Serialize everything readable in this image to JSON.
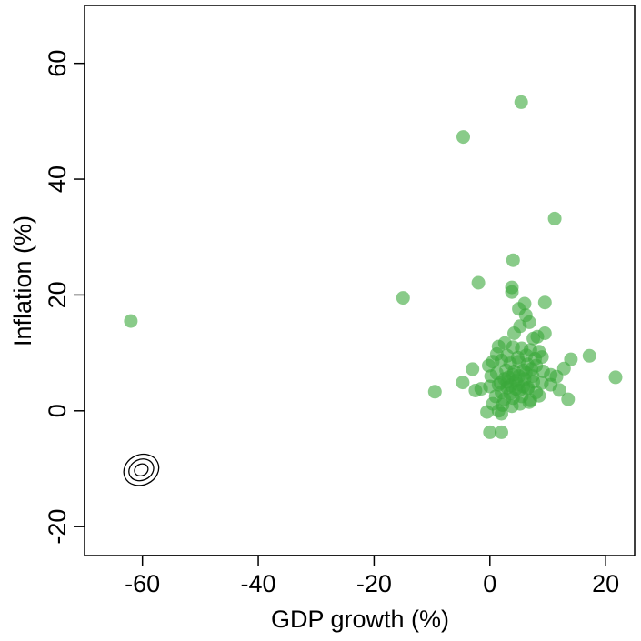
{
  "chart_data": {
    "type": "scatter",
    "title": "",
    "xlabel": "GDP growth (%)",
    "ylabel": "Inflation (%)",
    "xlim": [
      -70,
      25
    ],
    "ylim": [
      -25,
      70
    ],
    "x_ticks": [
      -60,
      -40,
      -20,
      0,
      20
    ],
    "y_ticks": [
      -20,
      0,
      20,
      40,
      60
    ],
    "x_tick_labels": [
      "-60",
      "-40",
      "-20",
      "0",
      "20"
    ],
    "y_tick_labels": [
      "-20",
      "0",
      "20",
      "40",
      "60"
    ],
    "grid": false,
    "legend": "none",
    "point_color": "#3aa83a",
    "point_opacity": 0.6,
    "contour": {
      "center": [
        -60.2,
        -10.2
      ],
      "radii_x": [
        1.2,
        2.2,
        3.1
      ],
      "radii_y": [
        1.0,
        1.8,
        2.6
      ]
    },
    "points": [
      [
        5.4,
        53.3
      ],
      [
        -4.6,
        47.3
      ],
      [
        11.2,
        33.2
      ],
      [
        4.0,
        26.0
      ],
      [
        -2.0,
        22.1
      ],
      [
        3.8,
        21.3
      ],
      [
        3.8,
        20.5
      ],
      [
        -15.0,
        19.5
      ],
      [
        -62.0,
        15.5
      ],
      [
        6.0,
        18.5
      ],
      [
        9.5,
        18.7
      ],
      [
        5.0,
        17.6
      ],
      [
        6.2,
        16.5
      ],
      [
        6.8,
        15.3
      ],
      [
        5.2,
        14.6
      ],
      [
        4.2,
        13.4
      ],
      [
        8.2,
        12.8
      ],
      [
        9.5,
        13.4
      ],
      [
        7.5,
        12.5
      ],
      [
        1.5,
        11.1
      ],
      [
        2.6,
        11.7
      ],
      [
        4.0,
        11.0
      ],
      [
        5.5,
        10.8
      ],
      [
        7.0,
        10.5
      ],
      [
        8.5,
        10.2
      ],
      [
        1.2,
        9.8
      ],
      [
        3.0,
        9.5
      ],
      [
        4.8,
        9.2
      ],
      [
        6.3,
        9.6
      ],
      [
        7.8,
        9.0
      ],
      [
        9.0,
        9.3
      ],
      [
        0.5,
        8.5
      ],
      [
        2.0,
        8.7
      ],
      [
        3.5,
        8.2
      ],
      [
        5.0,
        8.5
      ],
      [
        6.5,
        8.0
      ],
      [
        8.0,
        7.8
      ],
      [
        -0.2,
        7.8
      ],
      [
        14.0,
        8.9
      ],
      [
        17.2,
        9.5
      ],
      [
        21.7,
        5.8
      ],
      [
        12.8,
        7.3
      ],
      [
        11.5,
        5.9
      ],
      [
        10.5,
        6.2
      ],
      [
        9.2,
        6.8
      ],
      [
        7.2,
        7.2
      ],
      [
        5.8,
        7.0
      ],
      [
        4.2,
        6.8
      ],
      [
        2.8,
        7.0
      ],
      [
        1.2,
        6.5
      ],
      [
        0.2,
        6.0
      ],
      [
        -3.0,
        7.2
      ],
      [
        -4.7,
        4.9
      ],
      [
        -2.5,
        3.5
      ],
      [
        -1.5,
        3.8
      ],
      [
        0.0,
        4.2
      ],
      [
        1.5,
        4.5
      ],
      [
        3.0,
        5.0
      ],
      [
        4.5,
        5.2
      ],
      [
        6.0,
        5.5
      ],
      [
        7.5,
        5.0
      ],
      [
        9.0,
        4.8
      ],
      [
        10.5,
        4.5
      ],
      [
        2.0,
        3.2
      ],
      [
        3.5,
        3.0
      ],
      [
        5.0,
        3.5
      ],
      [
        6.5,
        3.8
      ],
      [
        8.0,
        3.2
      ],
      [
        12.0,
        3.6
      ],
      [
        13.5,
        2.0
      ],
      [
        1.0,
        2.5
      ],
      [
        2.5,
        2.0
      ],
      [
        4.0,
        2.2
      ],
      [
        5.5,
        2.5
      ],
      [
        7.0,
        1.8
      ],
      [
        8.5,
        2.6
      ],
      [
        0.5,
        1.2
      ],
      [
        2.2,
        1.0
      ],
      [
        3.8,
        0.8
      ],
      [
        5.2,
        1.2
      ],
      [
        6.8,
        1.5
      ],
      [
        1.5,
        0.0
      ],
      [
        2.0,
        -0.5
      ],
      [
        -0.5,
        -0.2
      ],
      [
        0.0,
        -3.7
      ],
      [
        2.0,
        -3.7
      ],
      [
        -9.5,
        3.3
      ],
      [
        3.0,
        4.0
      ],
      [
        4.5,
        3.8
      ],
      [
        5.8,
        4.2
      ],
      [
        3.2,
        5.8
      ],
      [
        4.0,
        6.2
      ],
      [
        5.0,
        6.0
      ],
      [
        6.2,
        6.5
      ],
      [
        2.5,
        5.5
      ],
      [
        1.8,
        4.8
      ],
      [
        3.6,
        4.4
      ],
      [
        4.8,
        4.6
      ],
      [
        6.6,
        4.0
      ],
      [
        7.4,
        6.0
      ]
    ]
  }
}
